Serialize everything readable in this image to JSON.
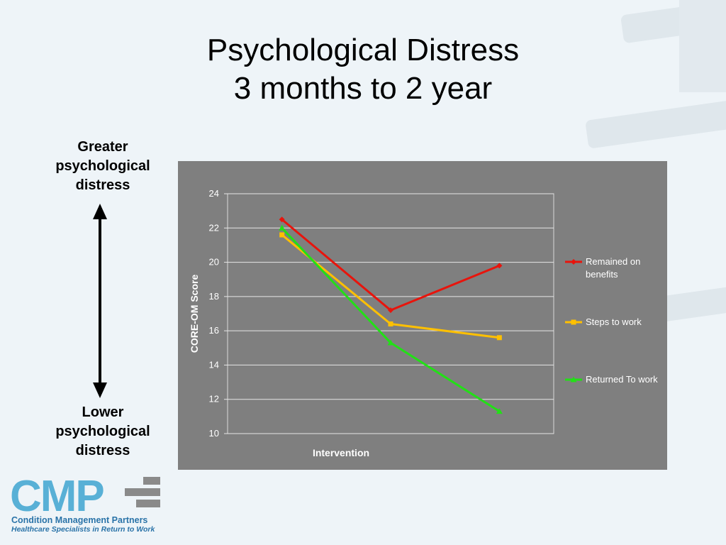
{
  "slide": {
    "title_line1": "Psychological Distress",
    "title_line2": "3 months to 2 year"
  },
  "scale_labels": {
    "top": [
      "Greater",
      "psychological",
      "distress"
    ],
    "bottom": [
      "Lower",
      "psychological",
      "distress"
    ]
  },
  "logo": {
    "letters": "CMP",
    "name": "Condition Management Partners",
    "tagline": "Healthcare Specialists in Return to Work"
  },
  "colors": {
    "background": "#eef4f8",
    "panel": "#7f7f7f",
    "remained": "#e8140c",
    "steps": "#ffc000",
    "returned": "#22e016",
    "logo_blue": "#58b0d6"
  },
  "chart_data": {
    "type": "line",
    "title": "",
    "xlabel": "Intervention",
    "ylabel": "CORE-OM Score",
    "ylim": [
      10,
      24
    ],
    "yticks": [
      10,
      12,
      14,
      16,
      18,
      20,
      22,
      24
    ],
    "grid": true,
    "legend_position": "right",
    "x": [
      1,
      2,
      3
    ],
    "series": [
      {
        "name": "Remained on benefits",
        "values": [
          22.5,
          17.2,
          19.8
        ],
        "color": "#e8140c",
        "marker": "diamond"
      },
      {
        "name": "Steps to work",
        "values": [
          21.6,
          16.4,
          15.6
        ],
        "color": "#ffc000",
        "marker": "square"
      },
      {
        "name": "Returned To work",
        "values": [
          22.0,
          15.3,
          11.3
        ],
        "color": "#22e016",
        "marker": "triangle"
      }
    ]
  }
}
